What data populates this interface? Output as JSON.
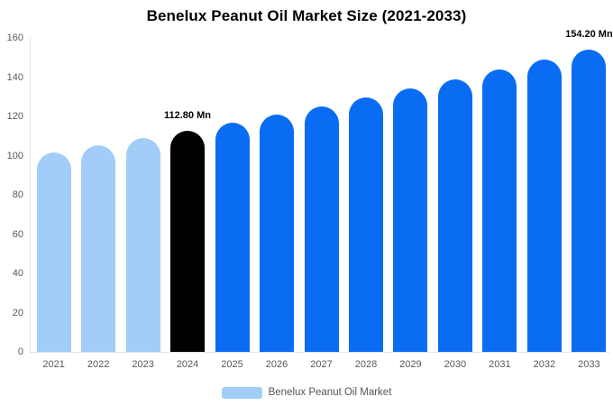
{
  "chart_data": {
    "type": "bar",
    "title": "Benelux Peanut Oil Market Size (2021-2033)",
    "series_name": "Benelux Peanut Oil Market",
    "categories": [
      "2021",
      "2022",
      "2023",
      "2024",
      "2025",
      "2026",
      "2027",
      "2028",
      "2029",
      "2030",
      "2031",
      "2032",
      "2033"
    ],
    "values": [
      101.6,
      105.2,
      108.9,
      112.8,
      116.8,
      120.9,
      125.2,
      129.6,
      134.2,
      138.9,
      143.8,
      148.9,
      154.2
    ],
    "point_colors": [
      "#a2cdf8",
      "#a2cdf8",
      "#a2cdf8",
      "#000000",
      "#0a6cf3",
      "#0a6cf3",
      "#0a6cf3",
      "#0a6cf3",
      "#0a6cf3",
      "#0a6cf3",
      "#0a6cf3",
      "#0a6cf3",
      "#0a6cf3"
    ],
    "xlabel": "",
    "ylabel": "",
    "ylim": [
      0,
      160
    ],
    "yticks": [
      0,
      20,
      40,
      60,
      80,
      100,
      120,
      140,
      160
    ],
    "grid": false,
    "legend_position": "bottom",
    "annotations": [
      {
        "category": "2024",
        "text": "112.80 Mn"
      },
      {
        "category": "2033",
        "text": "154.20 Mn"
      }
    ]
  },
  "legend": {
    "label": "Benelux Peanut Oil Market",
    "swatch_color": "#a2cdf8"
  },
  "colors": {
    "historical_bar": "#a2cdf8",
    "base_year_bar": "#000000",
    "forecast_bar": "#0a6cf3",
    "axis_line": "#e3e3e3",
    "tick_text": "#58595b",
    "annotation_text": "#000000",
    "background": "#ffffff"
  }
}
